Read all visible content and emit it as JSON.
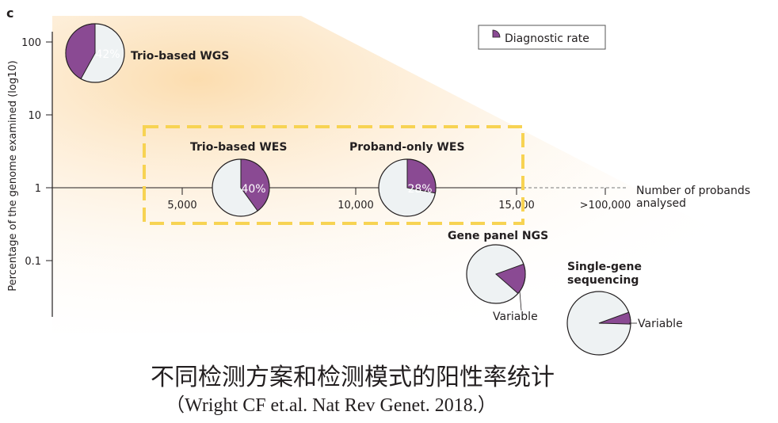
{
  "chart_data": {
    "type": "scatter",
    "panel_label": "c",
    "ylabel": "Percentage of the genome examined (log10)",
    "y_scale": "log",
    "y_ticks": [
      "100",
      "10",
      "1",
      "0.1"
    ],
    "x_title": "Number of probands analysed",
    "x_ticks": [
      "5,000",
      "10,000",
      "15,000",
      ">100,000"
    ],
    "legend": {
      "label": "Diagnostic rate",
      "position": "top-right"
    },
    "highlight_box": {
      "style": "dashed",
      "color": "#f7d353",
      "encloses": [
        "Trio-based WES",
        "Proband-only WES"
      ]
    },
    "colors": {
      "wedge": "#8a4a93",
      "pie_base": "#eef2f3",
      "glow": "#fbd9a6",
      "box": "#f7d353"
    },
    "points": [
      {
        "label": "Trio-based WGS",
        "rate_text": "42%",
        "diagnostic_rate": 0.42
      },
      {
        "label": "Trio-based WES",
        "rate_text": "40%",
        "diagnostic_rate": 0.4
      },
      {
        "label": "Proband-only WES",
        "rate_text": "28%",
        "diagnostic_rate": 0.28
      },
      {
        "label": "Gene panel NGS",
        "rate_text": "Variable",
        "diagnostic_rate": 0.17
      },
      {
        "label": "Single-gene sequencing",
        "rate_text": "Variable",
        "diagnostic_rate": 0.06
      }
    ]
  },
  "caption": {
    "title": "不同检测方案和检测模式的阳性率统计",
    "source": "（Wright CF et.al. Nat Rev Genet. 2018.）"
  }
}
